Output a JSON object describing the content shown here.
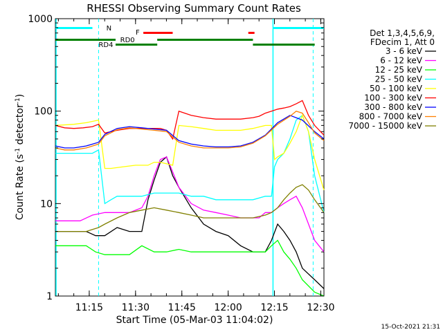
{
  "chart_data": {
    "type": "line",
    "title": "RHESSI Observing Summary Count Rates",
    "xlabel": "Start Time (05-Mar-03 11:04:02)",
    "ylabel_main": "Count Rate (s",
    "ylabel_sup1": "-1",
    "ylabel_mid": " detector",
    "ylabel_sup2": "-1",
    "ylabel_end": ")",
    "yscale": "log",
    "ylim": [
      1,
      1000
    ],
    "xlim_minutes": [
      0,
      87
    ],
    "x_tick_labels": [
      "11:15",
      "11:30",
      "11:45",
      "12:00",
      "12:15",
      "12:30"
    ],
    "x_tick_minutes": [
      10.97,
      25.97,
      40.97,
      55.97,
      70.97,
      85.97
    ],
    "y_tick_labels": [
      "1",
      "10",
      "100",
      "1000"
    ],
    "y_tick_values": [
      1,
      10,
      100,
      1000
    ],
    "legend": {
      "header": [
        "Det 1,3,4,5,6,9,",
        "FDecim 1, Att 0"
      ],
      "placement": "right"
    },
    "flags": {
      "night_label": "N",
      "saa_label": "F",
      "rd0_label": "RD0",
      "rd4_label": "RD4"
    },
    "series": [
      {
        "name": "3 - 6 keV",
        "color": "#000000",
        "x": [
          0,
          10,
          13,
          16,
          20,
          24,
          28,
          30,
          32,
          34,
          36,
          38,
          40,
          44,
          48,
          52,
          56,
          60,
          64,
          66,
          68,
          70,
          72,
          74,
          76,
          78,
          80,
          84,
          87
        ],
        "y": [
          5,
          5,
          4.5,
          4.5,
          5.5,
          5,
          5,
          11,
          18,
          28,
          32,
          20,
          15,
          9,
          6,
          5,
          4.5,
          3.5,
          3,
          3,
          3,
          4,
          6,
          5,
          4,
          3,
          2,
          1.5,
          1.2
        ]
      },
      {
        "name": "6 - 12 keV",
        "color": "#ff00ff",
        "x": [
          0,
          8,
          12,
          16,
          20,
          24,
          28,
          30,
          32,
          34,
          36,
          38,
          40,
          44,
          48,
          52,
          56,
          60,
          64,
          66,
          68,
          70,
          72,
          74,
          76,
          78,
          80,
          82,
          84,
          87
        ],
        "y": [
          6.5,
          6.5,
          7.5,
          8,
          8,
          8,
          9,
          12,
          20,
          30,
          32,
          22,
          15,
          10,
          8.5,
          8,
          7.5,
          7,
          7,
          7,
          8,
          8,
          9,
          10,
          11,
          12,
          9,
          6,
          4,
          3
        ]
      },
      {
        "name": "12 - 25 keV",
        "color": "#00ff00",
        "x": [
          0,
          10,
          13,
          16,
          20,
          24,
          28,
          32,
          36,
          40,
          44,
          48,
          52,
          56,
          60,
          64,
          68,
          70,
          72,
          74,
          76,
          78,
          80,
          84,
          87
        ],
        "y": [
          3.5,
          3.5,
          3,
          2.8,
          2.8,
          2.8,
          3.5,
          3,
          3,
          3.2,
          3,
          3,
          3,
          3,
          3,
          3,
          3,
          3.5,
          4,
          3,
          2.5,
          2,
          1.5,
          1.1,
          1
        ]
      },
      {
        "name": "25 - 50 keV",
        "color": "#00ffff",
        "x": [
          0,
          6,
          12,
          14,
          16,
          18,
          20,
          24,
          28,
          30,
          32,
          36,
          40,
          44,
          48,
          52,
          56,
          60,
          64,
          68,
          70,
          71,
          72,
          74,
          76,
          78,
          80,
          82,
          84,
          87
        ],
        "y": [
          35,
          35,
          35,
          38,
          10,
          11,
          12,
          12,
          12,
          12.5,
          13,
          13,
          13,
          12,
          12,
          11,
          11,
          11,
          11,
          12,
          12,
          25,
          30,
          35,
          50,
          80,
          90,
          60,
          20,
          8
        ]
      },
      {
        "name": "50 - 100 keV",
        "color": "#ffff00",
        "x": [
          0,
          6,
          10,
          14,
          16,
          18,
          22,
          26,
          30,
          32,
          34,
          36,
          38,
          40,
          44,
          48,
          52,
          56,
          60,
          64,
          68,
          70,
          71,
          72,
          74,
          76,
          78,
          80,
          82,
          84,
          87
        ],
        "y": [
          70,
          72,
          75,
          80,
          24,
          24,
          25,
          26,
          26,
          28,
          28,
          27,
          26,
          70,
          68,
          65,
          62,
          62,
          62,
          65,
          70,
          70,
          30,
          32,
          35,
          45,
          60,
          90,
          60,
          30,
          14
        ]
      },
      {
        "name": "100 - 300 keV",
        "color": "#ff0000",
        "x": [
          0,
          3,
          6,
          9,
          12,
          14,
          16,
          20,
          24,
          28,
          30,
          32,
          34,
          36,
          38,
          40,
          44,
          48,
          52,
          56,
          60,
          64,
          66,
          68,
          70,
          72,
          74,
          76,
          78,
          80,
          82,
          84,
          87
        ],
        "y": [
          70,
          66,
          65,
          66,
          68,
          72,
          58,
          62,
          65,
          65,
          65,
          65,
          65,
          62,
          50,
          100,
          90,
          85,
          82,
          82,
          82,
          85,
          88,
          95,
          100,
          105,
          108,
          112,
          120,
          130,
          90,
          70,
          55
        ]
      },
      {
        "name": "300 - 800 keV",
        "color": "#0000ff",
        "x": [
          0,
          3,
          6,
          10,
          14,
          16,
          20,
          24,
          28,
          32,
          36,
          40,
          44,
          48,
          52,
          56,
          60,
          64,
          68,
          72,
          76,
          80,
          84,
          87
        ],
        "y": [
          42,
          40,
          40,
          42,
          46,
          56,
          65,
          68,
          66,
          64,
          62,
          48,
          44,
          42,
          41,
          41,
          42,
          46,
          55,
          75,
          90,
          80,
          60,
          50
        ]
      },
      {
        "name": "800 - 7000 keV",
        "color": "#ff8000",
        "x": [
          0,
          3,
          6,
          10,
          14,
          16,
          20,
          24,
          28,
          32,
          36,
          40,
          44,
          48,
          52,
          56,
          60,
          64,
          68,
          72,
          76,
          78,
          80,
          82,
          84,
          87
        ],
        "y": [
          40,
          38,
          38,
          40,
          44,
          54,
          63,
          66,
          64,
          62,
          60,
          46,
          42,
          40,
          40,
          40,
          41,
          45,
          54,
          72,
          88,
          100,
          95,
          75,
          58,
          48
        ]
      },
      {
        "name": "7000 - 15000 keV",
        "color": "#808000",
        "x": [
          0,
          6,
          10,
          14,
          16,
          20,
          24,
          28,
          32,
          36,
          40,
          44,
          48,
          52,
          56,
          60,
          64,
          68,
          70,
          72,
          74,
          76,
          78,
          80,
          82,
          84,
          87
        ],
        "y": [
          5,
          5,
          5,
          5.5,
          6,
          7,
          8,
          8.5,
          9,
          8.5,
          8,
          7.5,
          7,
          7,
          7,
          7,
          7,
          7.5,
          8,
          9,
          11,
          13,
          15,
          16,
          14,
          11,
          8
        ]
      }
    ]
  },
  "timestamp": "15-Oct-2021 21:31"
}
